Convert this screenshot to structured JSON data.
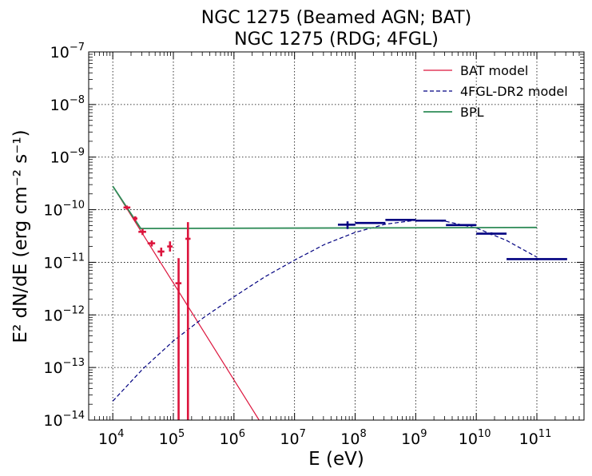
{
  "chart_data": {
    "type": "line",
    "title_line1": "NGC 1275 (Beamed AGN; BAT)",
    "title_line2": "NGC 1275 (RDG; 4FGL)",
    "xlabel": "E (eV)",
    "ylabel": "E² dN/dE (erg cm⁻² s⁻¹)",
    "x_scale": "log",
    "y_scale": "log",
    "xlim": [
      4000,
      600000000000
    ],
    "ylim": [
      1e-14,
      1e-07
    ],
    "grid": true,
    "grid_style": "dotted",
    "legend_position": "top-right",
    "x_ticks": [
      {
        "value": 10000,
        "mantissa": "10",
        "exp": "4"
      },
      {
        "value": 100000,
        "mantissa": "10",
        "exp": "5"
      },
      {
        "value": 1000000,
        "mantissa": "10",
        "exp": "6"
      },
      {
        "value": 10000000,
        "mantissa": "10",
        "exp": "7"
      },
      {
        "value": 100000000,
        "mantissa": "10",
        "exp": "8"
      },
      {
        "value": 1000000000,
        "mantissa": "10",
        "exp": "9"
      },
      {
        "value": 10000000000,
        "mantissa": "10",
        "exp": "10"
      },
      {
        "value": 100000000000,
        "mantissa": "10",
        "exp": "11"
      }
    ],
    "y_ticks": [
      {
        "value": 1e-14,
        "mantissa": "10",
        "exp": "−14"
      },
      {
        "value": 1e-13,
        "mantissa": "10",
        "exp": "−13"
      },
      {
        "value": 1e-12,
        "mantissa": "10",
        "exp": "−12"
      },
      {
        "value": 1e-11,
        "mantissa": "10",
        "exp": "−11"
      },
      {
        "value": 1e-10,
        "mantissa": "10",
        "exp": "−10"
      },
      {
        "value": 1e-09,
        "mantissa": "10",
        "exp": "−9"
      },
      {
        "value": 1e-08,
        "mantissa": "10",
        "exp": "−8"
      },
      {
        "value": 1e-07,
        "mantissa": "10",
        "exp": "−7"
      }
    ],
    "series": [
      {
        "name": "BAT model",
        "kind": "line",
        "color": "#dc143c",
        "dash": "solid",
        "x": [
          10000,
          2600000
        ],
        "y": [
          2.8e-10,
          1e-14
        ]
      },
      {
        "name": "4FGL-DR2 model",
        "kind": "line",
        "color": "#000080",
        "dash": "dashed",
        "x": [
          10000,
          31600,
          100000,
          316000,
          1000000,
          3160000,
          10000000,
          31600000,
          100000000,
          316000000,
          1000000000,
          3160000000,
          10000000000,
          31600000000,
          100000000000
        ],
        "y": [
          2.3e-14,
          9.5e-14,
          3.2e-13,
          8.9e-13,
          2.2e-12,
          5.2e-12,
          1.1e-11,
          2.2e-11,
          3.7e-11,
          5.3e-11,
          6.3e-11,
          6e-11,
          4.5e-11,
          2.6e-11,
          1.25e-11
        ]
      },
      {
        "name": "BPL",
        "kind": "line",
        "color": "#2e8b57",
        "dash": "solid",
        "x": [
          10000,
          29000,
          100000000000
        ],
        "y": [
          2.8e-10,
          4.4e-11,
          4.6e-11
        ]
      }
    ],
    "bat_points": {
      "color": "#dc143c",
      "points": [
        {
          "x": 17000,
          "y": 1.1e-10,
          "xlo": 15000,
          "xhi": 19500,
          "ylo": 1e-10,
          "yhi": 1.2e-10
        },
        {
          "x": 23500,
          "y": 6.8e-11,
          "xlo": 21500,
          "xhi": 25500,
          "ylo": 6e-11,
          "yhi": 7.5e-11
        },
        {
          "x": 31000,
          "y": 3.8e-11,
          "xlo": 26500,
          "xhi": 35500,
          "ylo": 3.3e-11,
          "yhi": 4.3e-11
        },
        {
          "x": 44000,
          "y": 2.3e-11,
          "xlo": 37500,
          "xhi": 50000,
          "ylo": 2e-11,
          "yhi": 2.6e-11
        },
        {
          "x": 63000,
          "y": 1.6e-11,
          "xlo": 55000,
          "xhi": 71000,
          "ylo": 1.3e-11,
          "yhi": 1.9e-11
        },
        {
          "x": 88000,
          "y": 2e-11,
          "xlo": 79000,
          "xhi": 97000,
          "ylo": 1.6e-11,
          "yhi": 2.5e-11
        },
        {
          "x": 122000,
          "y": 4e-12,
          "xlo": 108000,
          "xhi": 136000,
          "ylo": 1e-14,
          "yhi": 1.2e-11
        },
        {
          "x": 174000,
          "y": 2.8e-11,
          "xlo": 158000,
          "xhi": 192000,
          "ylo": 1e-14,
          "yhi": 5.8e-11
        }
      ]
    },
    "fgl_points": {
      "color": "#000080",
      "points": [
        {
          "x": 75000000,
          "y": 5.2e-11,
          "xlo": 52000000,
          "xhi": 100000000,
          "ylo": 4.3e-11,
          "yhi": 6e-11
        },
        {
          "x": 177000000,
          "y": 5.6e-11,
          "xlo": 100000000,
          "xhi": 316000000,
          "ylo": 5.4e-11,
          "yhi": 5.8e-11
        },
        {
          "x": 562000000,
          "y": 6.4e-11,
          "xlo": 316000000,
          "xhi": 1000000000,
          "ylo": 6.2e-11,
          "yhi": 6.6e-11
        },
        {
          "x": 1780000000,
          "y": 6.2e-11,
          "xlo": 1000000000,
          "xhi": 3160000000,
          "ylo": 6e-11,
          "yhi": 6.4e-11
        },
        {
          "x": 5620000000,
          "y": 5.1e-11,
          "xlo": 3160000000,
          "xhi": 10000000000,
          "ylo": 4.9e-11,
          "yhi": 5.3e-11
        },
        {
          "x": 17800000000,
          "y": 3.5e-11,
          "xlo": 10000000000,
          "xhi": 31600000000,
          "ylo": 3.3e-11,
          "yhi": 3.7e-11
        },
        {
          "x": 100000000000,
          "y": 1.15e-11,
          "xlo": 31600000000,
          "xhi": 316000000000,
          "ylo": 1.1e-11,
          "yhi": 1.2e-11
        }
      ]
    }
  }
}
